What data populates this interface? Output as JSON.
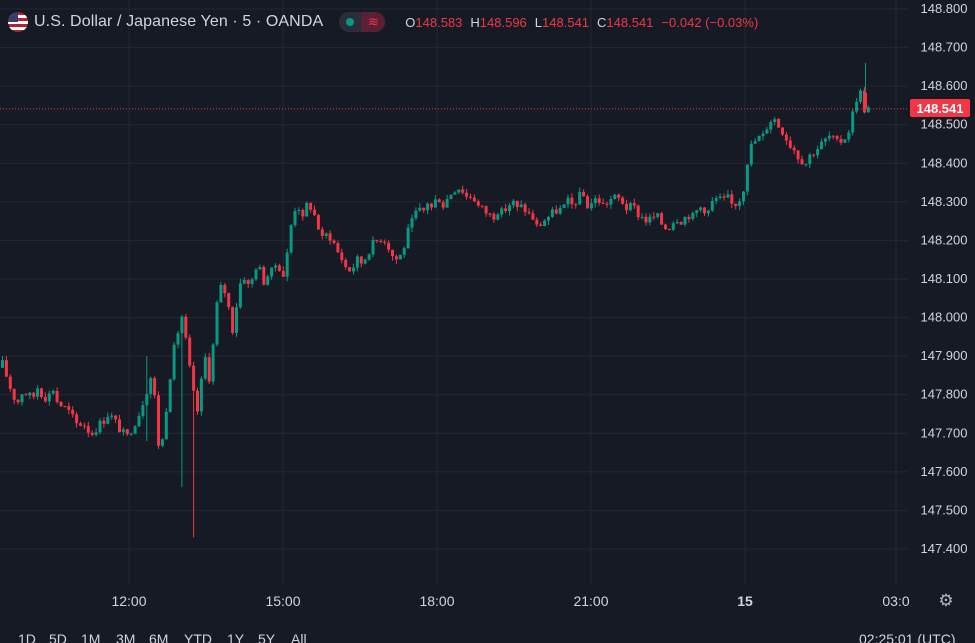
{
  "header": {
    "symbol": "U.S. Dollar / Japanese Yen · 5 · OANDA",
    "flag_icon": "us-japan-flag-icon",
    "status_icon": "market-open-dot-icon",
    "badge_icon": "wave-icon",
    "badge_glyph": "≋",
    "ohlc": {
      "o_label": "O",
      "o_value": "148.583",
      "h_label": "H",
      "h_value": "148.596",
      "l_label": "L",
      "l_value": "148.541",
      "c_label": "C",
      "c_value": "148.541",
      "change": "−0.042 (−0.03%)"
    }
  },
  "price_axis": {
    "ticks": [
      "148.800",
      "148.700",
      "148.600",
      "148.500",
      "148.400",
      "148.300",
      "148.200",
      "148.100",
      "148.000",
      "147.900",
      "147.800",
      "147.700",
      "147.600",
      "147.500",
      "147.400"
    ],
    "current_price_label": "148.541"
  },
  "time_axis": {
    "ticks": [
      "12:00",
      "15:00",
      "18:00",
      "21:00",
      "15",
      "03:0"
    ]
  },
  "settings_glyph": "⚙",
  "bottom_bar": {
    "ranges": [
      "1D",
      "5D",
      "1M",
      "3M",
      "6M",
      "YTD",
      "1Y",
      "5Y",
      "All"
    ],
    "clock": "02:25:01 (UTC)"
  },
  "colors": {
    "up": "#089981",
    "down": "#f23645",
    "background": "#161a25",
    "grid": "#232733",
    "text": "#d1d4dc"
  },
  "chart_data": {
    "type": "candlestick",
    "symbol": "USD/JPY",
    "interval": "5",
    "ylim": [
      147.4,
      148.8
    ],
    "current_price": 148.541,
    "x_ticks": [
      "12:00",
      "15:00",
      "18:00",
      "21:00",
      "15",
      "03:0"
    ],
    "y_ticks": [
      148.8,
      148.7,
      148.6,
      148.5,
      148.4,
      148.3,
      148.2,
      148.1,
      148.0,
      147.9,
      147.8,
      147.7,
      147.6,
      147.5,
      147.4
    ],
    "path": [
      [
        0,
        147.87
      ],
      [
        5,
        147.88
      ],
      [
        10,
        147.84
      ],
      [
        15,
        147.8
      ],
      [
        20,
        147.78
      ],
      [
        25,
        147.81
      ],
      [
        30,
        147.8
      ],
      [
        35,
        147.79
      ],
      [
        40,
        147.82
      ],
      [
        45,
        147.8
      ],
      [
        50,
        147.79
      ],
      [
        55,
        147.82
      ],
      [
        60,
        147.78
      ],
      [
        65,
        147.77
      ],
      [
        70,
        147.76
      ],
      [
        75,
        147.74
      ],
      [
        80,
        147.72
      ],
      [
        85,
        147.73
      ],
      [
        90,
        147.71
      ],
      [
        95,
        147.7
      ],
      [
        100,
        147.72
      ],
      [
        105,
        147.73
      ],
      [
        110,
        147.75
      ],
      [
        115,
        147.74
      ],
      [
        120,
        147.72
      ],
      [
        125,
        147.7
      ],
      [
        130,
        147.69
      ],
      [
        135,
        147.72
      ],
      [
        140,
        147.74
      ],
      [
        145,
        147.78
      ],
      [
        150,
        147.82
      ],
      [
        155,
        147.86
      ],
      [
        158,
        147.76
      ],
      [
        162,
        147.64
      ],
      [
        166,
        147.7
      ],
      [
        170,
        147.8
      ],
      [
        175,
        147.9
      ],
      [
        180,
        147.96
      ],
      [
        185,
        148.01
      ],
      [
        190,
        147.9
      ],
      [
        195,
        147.82
      ],
      [
        199,
        147.74
      ],
      [
        203,
        147.82
      ],
      [
        208,
        147.9
      ],
      [
        212,
        147.84
      ],
      [
        216,
        147.94
      ],
      [
        220,
        148.05
      ],
      [
        225,
        148.09
      ],
      [
        230,
        148.04
      ],
      [
        235,
        147.97
      ],
      [
        240,
        148.05
      ],
      [
        245,
        148.12
      ],
      [
        250,
        148.08
      ],
      [
        255,
        148.1
      ],
      [
        260,
        148.15
      ],
      [
        265,
        148.09
      ],
      [
        270,
        148.11
      ],
      [
        275,
        148.12
      ],
      [
        280,
        148.15
      ],
      [
        285,
        148.1
      ],
      [
        290,
        148.17
      ],
      [
        295,
        148.27
      ],
      [
        300,
        148.3
      ],
      [
        305,
        148.25
      ],
      [
        310,
        148.3
      ],
      [
        315,
        148.28
      ],
      [
        320,
        148.24
      ],
      [
        325,
        148.2
      ],
      [
        330,
        148.22
      ],
      [
        335,
        148.2
      ],
      [
        340,
        148.17
      ],
      [
        345,
        148.15
      ],
      [
        350,
        148.12
      ],
      [
        355,
        148.13
      ],
      [
        360,
        148.15
      ],
      [
        365,
        148.14
      ],
      [
        370,
        148.17
      ],
      [
        375,
        148.19
      ],
      [
        380,
        148.2
      ],
      [
        385,
        148.21
      ],
      [
        390,
        148.19
      ],
      [
        395,
        148.16
      ],
      [
        400,
        148.15
      ],
      [
        405,
        148.17
      ],
      [
        410,
        148.22
      ],
      [
        415,
        148.25
      ],
      [
        420,
        148.28
      ],
      [
        425,
        148.27
      ],
      [
        430,
        148.3
      ],
      [
        435,
        148.28
      ],
      [
        440,
        148.32
      ],
      [
        445,
        148.29
      ],
      [
        450,
        148.31
      ],
      [
        455,
        148.33
      ],
      [
        460,
        148.34
      ],
      [
        465,
        148.33
      ],
      [
        470,
        148.31
      ],
      [
        475,
        148.32
      ],
      [
        480,
        148.29
      ],
      [
        485,
        148.28
      ],
      [
        490,
        148.27
      ],
      [
        495,
        148.26
      ],
      [
        500,
        148.28
      ],
      [
        505,
        148.27
      ],
      [
        510,
        148.29
      ],
      [
        515,
        148.3
      ],
      [
        520,
        148.28
      ],
      [
        525,
        148.29
      ],
      [
        530,
        148.27
      ],
      [
        535,
        148.26
      ],
      [
        540,
        148.23
      ],
      [
        545,
        148.25
      ],
      [
        550,
        148.26
      ],
      [
        555,
        148.27
      ],
      [
        560,
        148.28
      ],
      [
        565,
        148.28
      ],
      [
        570,
        148.3
      ],
      [
        575,
        148.29
      ],
      [
        580,
        148.31
      ],
      [
        585,
        148.32
      ],
      [
        590,
        148.29
      ],
      [
        595,
        148.3
      ],
      [
        600,
        148.31
      ],
      [
        605,
        148.29
      ],
      [
        610,
        148.3
      ],
      [
        615,
        148.31
      ],
      [
        620,
        148.31
      ],
      [
        625,
        148.3
      ],
      [
        630,
        148.28
      ],
      [
        635,
        148.29
      ],
      [
        640,
        148.27
      ],
      [
        645,
        148.26
      ],
      [
        650,
        148.25
      ],
      [
        655,
        148.26
      ],
      [
        660,
        148.26
      ],
      [
        665,
        148.24
      ],
      [
        670,
        148.23
      ],
      [
        675,
        148.25
      ],
      [
        680,
        148.26
      ],
      [
        685,
        148.25
      ],
      [
        690,
        148.27
      ],
      [
        695,
        148.26
      ],
      [
        700,
        148.28
      ],
      [
        705,
        148.29
      ],
      [
        710,
        148.27
      ],
      [
        715,
        148.3
      ],
      [
        720,
        148.31
      ],
      [
        725,
        148.3
      ],
      [
        730,
        148.31
      ],
      [
        735,
        148.29
      ],
      [
        740,
        148.3
      ],
      [
        745,
        148.32
      ],
      [
        748,
        148.38
      ],
      [
        752,
        148.44
      ],
      [
        756,
        148.45
      ],
      [
        760,
        148.47
      ],
      [
        764,
        148.46
      ],
      [
        768,
        148.49
      ],
      [
        772,
        148.51
      ],
      [
        776,
        148.52
      ],
      [
        780,
        148.5
      ],
      [
        784,
        148.49
      ],
      [
        788,
        148.47
      ],
      [
        792,
        148.45
      ],
      [
        796,
        148.44
      ],
      [
        800,
        148.42
      ],
      [
        804,
        148.41
      ],
      [
        808,
        148.4
      ],
      [
        812,
        148.42
      ],
      [
        816,
        148.43
      ],
      [
        820,
        148.44
      ],
      [
        824,
        148.45
      ],
      [
        828,
        148.46
      ],
      [
        832,
        148.47
      ],
      [
        836,
        148.46
      ],
      [
        840,
        148.45
      ],
      [
        844,
        148.46
      ],
      [
        848,
        148.47
      ],
      [
        852,
        148.49
      ],
      [
        856,
        148.54
      ],
      [
        860,
        148.58
      ],
      [
        864,
        148.583
      ],
      [
        866,
        148.541
      ]
    ]
  }
}
